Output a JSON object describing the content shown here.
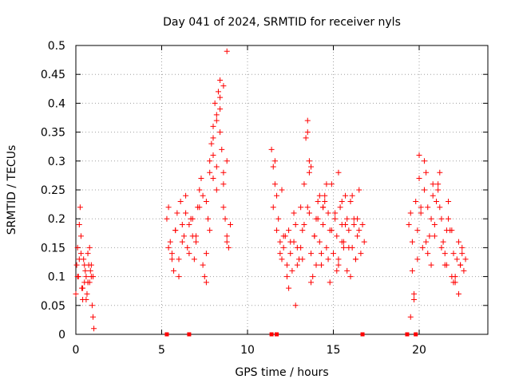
{
  "chart_data": {
    "type": "scatter",
    "title": "Day 041 of 2024, SRMTID for receiver nyls",
    "xlabel": "GPS time / hours",
    "ylabel": "SRMTID / TECUs",
    "xlim": [
      0,
      24
    ],
    "ylim": [
      0,
      0.5
    ],
    "x_ticks": [
      0,
      5,
      10,
      15,
      20
    ],
    "x_tick_labels": [
      "0",
      "5",
      "10",
      "15",
      "20"
    ],
    "y_ticks": [
      0,
      0.05,
      0.1,
      0.15,
      0.2,
      0.25,
      0.3,
      0.35,
      0.4,
      0.45,
      0.5
    ],
    "y_tick_labels": [
      "0",
      "0.05",
      "0.1",
      "0.15",
      "0.2",
      "0.25",
      "0.3",
      "0.35",
      "0.4",
      "0.45",
      "0.5"
    ],
    "grid": true,
    "marker_color": "#ff0000",
    "marker": "plus",
    "series": [
      {
        "name": "SRMTID",
        "x": [
          0.0,
          0.05,
          0.1,
          0.15,
          0.2,
          0.25,
          0.3,
          0.35,
          0.4,
          0.45,
          0.5,
          0.55,
          0.6,
          0.65,
          0.7,
          0.75,
          0.8,
          0.85,
          0.9,
          0.95,
          1.0,
          1.05,
          0.1,
          0.2,
          0.3,
          0.4,
          0.5,
          0.6,
          0.7,
          0.8,
          0.9,
          1.0,
          5.3,
          5.4,
          5.5,
          5.6,
          5.7,
          5.8,
          5.9,
          6.0,
          6.1,
          6.2,
          6.3,
          6.4,
          6.5,
          6.6,
          6.7,
          6.8,
          6.9,
          7.0,
          7.1,
          7.2,
          7.3,
          7.4,
          7.5,
          7.6,
          7.7,
          7.8,
          7.9,
          8.0,
          8.1,
          8.2,
          8.3,
          8.4,
          8.5,
          8.6,
          8.7,
          8.8,
          8.9,
          9.0,
          5.4,
          5.6,
          5.8,
          6.0,
          6.2,
          6.4,
          6.6,
          6.8,
          7.0,
          7.2,
          7.4,
          7.6,
          7.8,
          8.0,
          8.2,
          8.4,
          8.6,
          8.8,
          7.6,
          7.8,
          8.0,
          8.2,
          8.4,
          8.6,
          8.8,
          8.0,
          8.2,
          8.4,
          8.6,
          8.8,
          11.4,
          11.5,
          11.6,
          11.7,
          11.8,
          11.9,
          12.0,
          12.1,
          12.2,
          12.3,
          12.4,
          12.5,
          12.6,
          12.7,
          12.8,
          12.9,
          13.0,
          13.1,
          13.2,
          13.3,
          13.4,
          13.5,
          13.6,
          13.7,
          13.8,
          13.9,
          14.0,
          14.1,
          14.2,
          14.3,
          14.4,
          14.5,
          14.6,
          14.7,
          14.8,
          14.9,
          15.0,
          15.1,
          15.2,
          15.3,
          15.4,
          15.5,
          15.6,
          15.7,
          15.8,
          15.9,
          16.0,
          16.1,
          16.2,
          16.3,
          16.4,
          16.5,
          16.6,
          16.7,
          16.8,
          11.5,
          11.7,
          11.9,
          12.1,
          12.3,
          12.5,
          12.7,
          12.9,
          13.1,
          13.3,
          13.5,
          13.7,
          13.9,
          14.1,
          14.3,
          14.5,
          14.7,
          14.9,
          15.1,
          15.3,
          15.5,
          15.7,
          15.9,
          16.1,
          16.3,
          16.5,
          11.6,
          12.0,
          12.4,
          12.8,
          13.2,
          13.6,
          14.0,
          14.4,
          14.8,
          15.2,
          15.6,
          16.0,
          16.4,
          13.5,
          13.6,
          13.7,
          14.2,
          14.4,
          14.6,
          15.3,
          15.5,
          15.8,
          16.2,
          19.4,
          19.5,
          19.6,
          19.7,
          19.8,
          19.9,
          20.0,
          20.1,
          20.2,
          20.3,
          20.4,
          20.5,
          20.6,
          20.7,
          20.8,
          20.9,
          21.0,
          21.1,
          21.2,
          21.3,
          21.4,
          21.5,
          21.6,
          21.7,
          21.8,
          21.9,
          22.0,
          22.1,
          22.2,
          22.3,
          22.4,
          22.5,
          22.6,
          22.7,
          19.5,
          19.7,
          19.9,
          20.1,
          20.3,
          20.5,
          20.7,
          20.9,
          21.1,
          21.3,
          21.5,
          21.7,
          21.9,
          22.1,
          22.3,
          22.5,
          19.6,
          20.0,
          20.4,
          20.8,
          21.2,
          21.6,
          22.0,
          22.4
        ],
        "y": [
          0.07,
          0.12,
          0.15,
          0.1,
          0.19,
          0.22,
          0.14,
          0.08,
          0.06,
          0.13,
          0.09,
          0.11,
          0.1,
          0.07,
          0.14,
          0.12,
          0.09,
          0.11,
          0.1,
          0.05,
          0.03,
          0.01,
          0.1,
          0.13,
          0.17,
          0.08,
          0.12,
          0.06,
          0.09,
          0.15,
          0.12,
          0.1,
          0.2,
          0.22,
          0.16,
          0.14,
          0.11,
          0.18,
          0.21,
          0.13,
          0.23,
          0.19,
          0.17,
          0.24,
          0.15,
          0.19,
          0.2,
          0.17,
          0.13,
          0.16,
          0.22,
          0.25,
          0.27,
          0.12,
          0.1,
          0.14,
          0.2,
          0.3,
          0.33,
          0.36,
          0.4,
          0.38,
          0.42,
          0.44,
          0.32,
          0.26,
          0.2,
          0.17,
          0.15,
          0.19,
          0.15,
          0.13,
          0.18,
          0.1,
          0.16,
          0.21,
          0.14,
          0.2,
          0.17,
          0.22,
          0.24,
          0.09,
          0.28,
          0.31,
          0.25,
          0.35,
          0.22,
          0.16,
          0.23,
          0.18,
          0.34,
          0.29,
          0.39,
          0.43,
          0.3,
          0.27,
          0.37,
          0.41,
          0.28,
          0.49,
          0.32,
          0.29,
          0.26,
          0.24,
          0.2,
          0.16,
          0.13,
          0.15,
          0.17,
          0.12,
          0.18,
          0.14,
          0.11,
          0.16,
          0.19,
          0.15,
          0.13,
          0.22,
          0.18,
          0.26,
          0.34,
          0.37,
          0.21,
          0.14,
          0.1,
          0.17,
          0.2,
          0.23,
          0.16,
          0.12,
          0.19,
          0.24,
          0.15,
          0.21,
          0.18,
          0.26,
          0.14,
          0.2,
          0.17,
          0.13,
          0.22,
          0.19,
          0.16,
          0.24,
          0.11,
          0.18,
          0.23,
          0.15,
          0.2,
          0.13,
          0.17,
          0.25,
          0.14,
          0.19,
          0.16,
          0.22,
          0.18,
          0.14,
          0.17,
          0.1,
          0.16,
          0.21,
          0.12,
          0.15,
          0.19,
          0.22,
          0.09,
          0.17,
          0.2,
          0.14,
          0.23,
          0.13,
          0.18,
          0.21,
          0.12,
          0.16,
          0.19,
          0.15,
          0.24,
          0.13,
          0.18,
          0.3,
          0.25,
          0.08,
          0.05,
          0.13,
          0.28,
          0.12,
          0.22,
          0.09,
          0.11,
          0.15,
          0.1,
          0.2,
          0.35,
          0.3,
          0.29,
          0.24,
          0.22,
          0.26,
          0.28,
          0.23,
          0.2,
          0.19,
          0.19,
          0.21,
          0.16,
          0.06,
          0.23,
          0.18,
          0.27,
          0.21,
          0.15,
          0.3,
          0.28,
          0.22,
          0.17,
          0.12,
          0.24,
          0.19,
          0.23,
          0.26,
          0.28,
          0.2,
          0.16,
          0.14,
          0.12,
          0.23,
          0.18,
          0.1,
          0.14,
          0.09,
          0.13,
          0.16,
          0.12,
          0.15,
          0.11,
          0.13,
          0.03,
          0.07,
          0.13,
          0.22,
          0.25,
          0.14,
          0.2,
          0.17,
          0.25,
          0.15,
          0.12,
          0.2,
          0.18,
          0.1,
          0.07,
          0.14,
          0.11,
          0.31,
          0.16,
          0.26,
          0.22,
          0.18,
          0.09,
          0.12
        ]
      }
    ],
    "gap_markers_x": [
      5.3,
      6.6,
      11.4,
      11.7,
      16.7,
      19.3,
      19.8
    ]
  }
}
